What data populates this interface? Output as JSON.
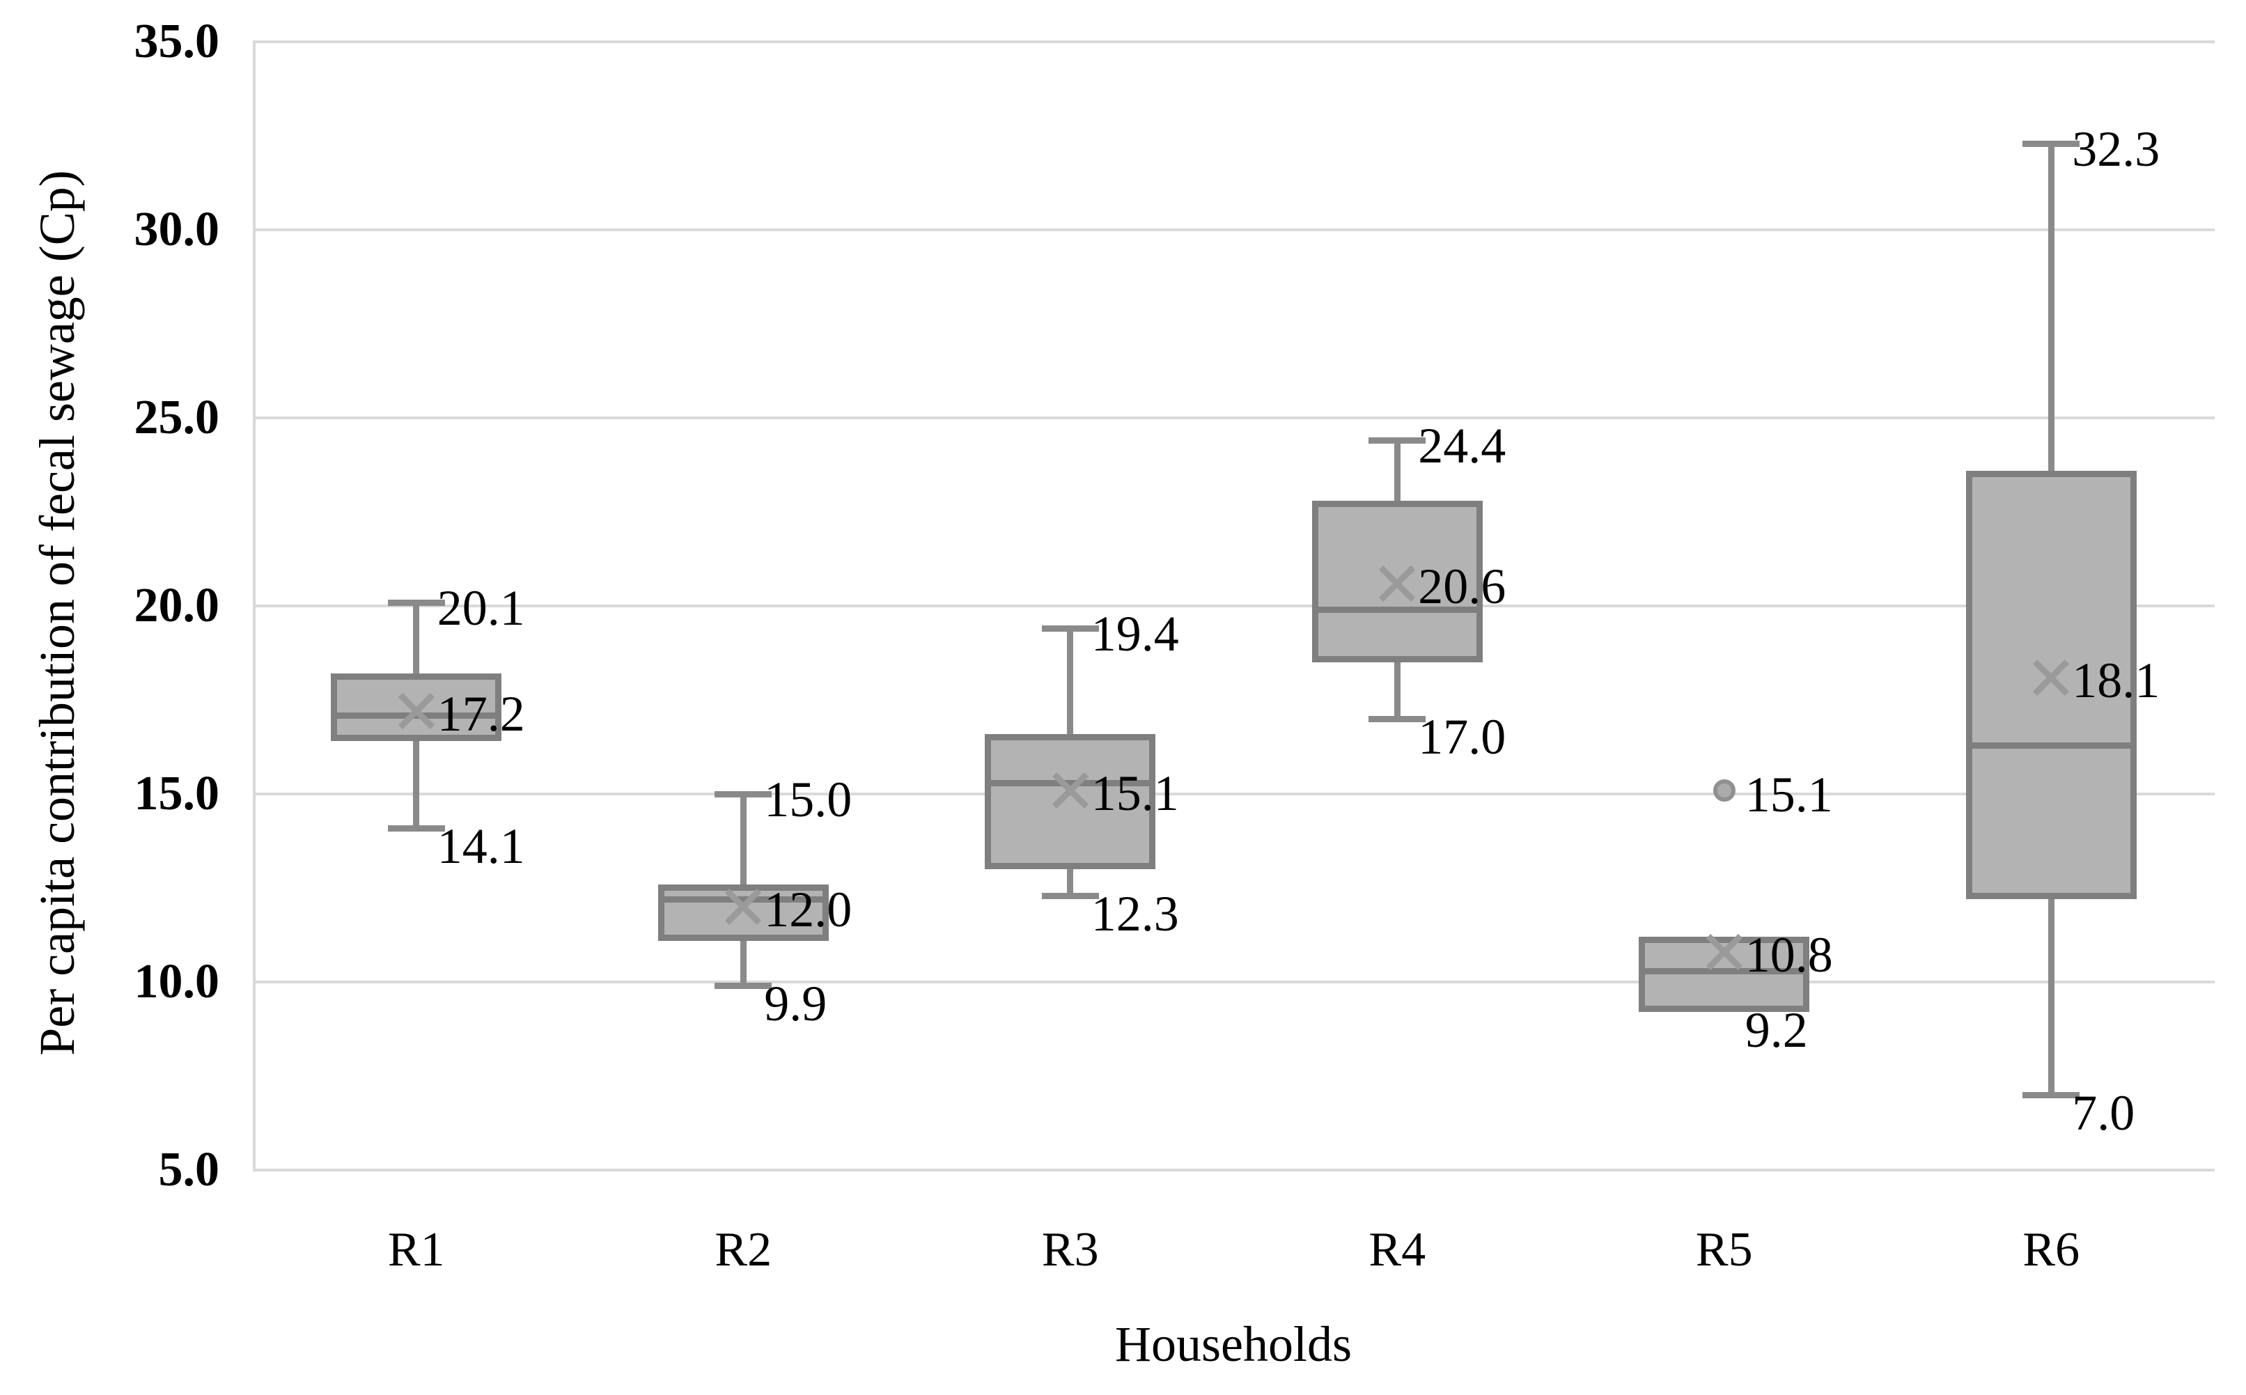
{
  "figure": {
    "background": "#ffffff"
  },
  "y_axis": {
    "title": "Per capita contribution of fecal sewage (Cp)",
    "ticks": [
      "35.0",
      "30.0",
      "25.0",
      "20.0",
      "15.0",
      "10.0",
      "5.0"
    ]
  },
  "x_axis": {
    "title": "Households",
    "categories": [
      "R1",
      "R2",
      "R3",
      "R4",
      "R5",
      "R6"
    ]
  },
  "chart_data": {
    "type": "box",
    "title": "",
    "xlabel": "Households",
    "ylabel": "Per capita contribution of fecal sewage (Cp)",
    "ylim": [
      5.0,
      35.0
    ],
    "ytick_step": 5.0,
    "grid": "horizontal",
    "legend": "none",
    "categories": [
      "R1",
      "R2",
      "R3",
      "R4",
      "R5",
      "R6"
    ],
    "series": [
      {
        "category": "R1",
        "min": 14.1,
        "q1": 16.4,
        "median": 17.1,
        "q3": 18.2,
        "max": 20.1,
        "mean": 17.2,
        "outliers": [],
        "labels": [
          {
            "text": "20.1",
            "value": 20.1,
            "kind": "max"
          },
          {
            "text": "17.2",
            "value": 17.2,
            "kind": "mean"
          },
          {
            "text": "14.1",
            "value": 14.1,
            "kind": "min"
          }
        ]
      },
      {
        "category": "R2",
        "min": 9.9,
        "q1": 11.1,
        "median": 12.2,
        "q3": 12.6,
        "max": 15.0,
        "mean": 12.0,
        "outliers": [],
        "labels": [
          {
            "text": "15.0",
            "value": 15.0,
            "kind": "max"
          },
          {
            "text": "12.0",
            "value": 12.0,
            "kind": "mean"
          },
          {
            "text": "9.9",
            "value": 9.9,
            "kind": "min"
          }
        ]
      },
      {
        "category": "R3",
        "min": 12.3,
        "q1": 13.0,
        "median": 15.3,
        "q3": 16.6,
        "max": 19.4,
        "mean": 15.1,
        "outliers": [],
        "labels": [
          {
            "text": "19.4",
            "value": 19.4,
            "kind": "max"
          },
          {
            "text": "15.1",
            "value": 15.1,
            "kind": "mean"
          },
          {
            "text": "12.3",
            "value": 12.3,
            "kind": "min"
          }
        ]
      },
      {
        "category": "R4",
        "min": 17.0,
        "q1": 18.5,
        "median": 19.9,
        "q3": 22.8,
        "max": 24.4,
        "mean": 20.6,
        "outliers": [],
        "labels": [
          {
            "text": "24.4",
            "value": 24.4,
            "kind": "max"
          },
          {
            "text": "20.6",
            "value": 20.6,
            "kind": "mean"
          },
          {
            "text": "17.0",
            "value": 17.0,
            "kind": "min"
          }
        ]
      },
      {
        "category": "R5",
        "min": 9.2,
        "q1": 9.2,
        "median": 10.3,
        "q3": 11.2,
        "max": 11.2,
        "mean": 10.8,
        "outliers": [
          15.1
        ],
        "labels": [
          {
            "text": "15.1",
            "value": 15.1,
            "kind": "outlier"
          },
          {
            "text": "10.8",
            "value": 10.8,
            "kind": "mean"
          },
          {
            "text": "9.2",
            "value": 9.2,
            "kind": "min"
          }
        ]
      },
      {
        "category": "R6",
        "min": 7.0,
        "q1": 12.2,
        "median": 16.3,
        "q3": 23.6,
        "max": 32.3,
        "mean": 18.1,
        "outliers": [],
        "labels": [
          {
            "text": "32.3",
            "value": 32.3,
            "kind": "max"
          },
          {
            "text": "18.1",
            "value": 18.1,
            "kind": "mean"
          },
          {
            "text": "7.0",
            "value": 7.0,
            "kind": "min"
          }
        ]
      }
    ],
    "colors": {
      "box_fill": "#b3b3b3",
      "box_border": "#7f7f7f",
      "median": "#7f7f7f",
      "whisker": "#8a8a8a",
      "mean_marker": "#9a9a9a",
      "outlier_fill": "#ababab",
      "outlier_border": "#909090",
      "gridline": "#d9d9d9",
      "text": "#000000"
    }
  }
}
